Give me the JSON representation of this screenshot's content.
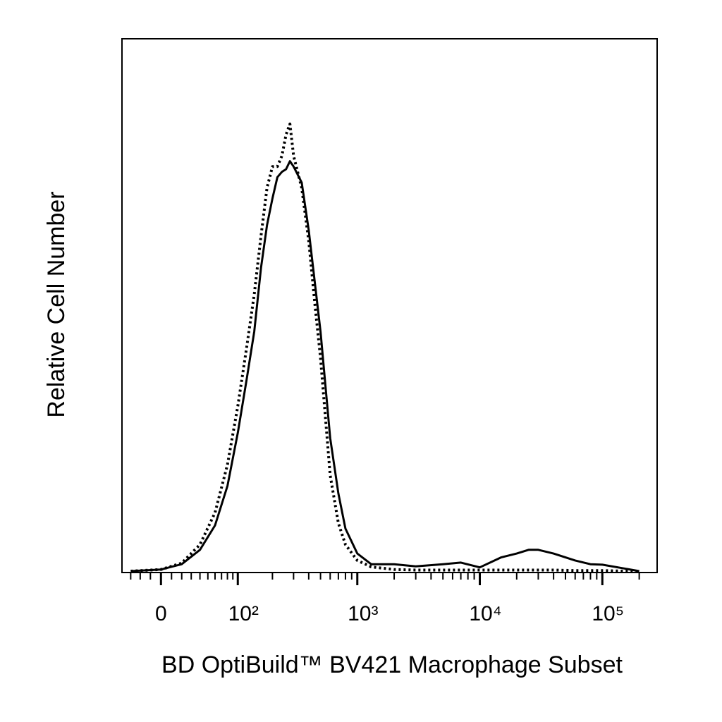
{
  "chart_data": {
    "type": "line",
    "xlabel": "BD OptiBuild™ BV421 Macrophage Subset",
    "ylabel": "Relative Cell Number",
    "xscale": "biexponential",
    "x": [
      -30,
      0,
      20,
      40,
      60,
      80,
      100,
      120,
      140,
      160,
      180,
      200,
      220,
      240,
      260,
      280,
      300,
      350,
      400,
      450,
      500,
      600,
      700,
      800,
      1000,
      1300,
      2000,
      3000,
      5000,
      7000,
      10000,
      15000,
      20000,
      25000,
      30000,
      40000,
      60000,
      80000,
      100000,
      150000,
      200000
    ],
    "series": [
      {
        "color": "#000000",
        "style": "solid",
        "values": [
          0,
          0.3,
          1.3,
          4,
          8.6,
          16,
          26,
          36,
          45,
          57,
          65,
          70,
          74,
          75,
          75.5,
          77,
          76,
          73,
          64,
          54,
          45,
          25,
          14.6,
          8,
          3.3,
          1.3,
          1.3,
          0.9,
          1.3,
          1.6,
          0.7,
          2.6,
          3.3,
          4,
          4,
          3.3,
          2,
          1.3,
          1.2,
          0.5,
          0
        ]
      },
      {
        "color": "#000000",
        "style": "dotted",
        "values": [
          0,
          0.3,
          1.5,
          5,
          11,
          20,
          31,
          42,
          52,
          63,
          72,
          76,
          76,
          78,
          82,
          84,
          78,
          72,
          62,
          50,
          40,
          18,
          9,
          5,
          2,
          0.8,
          0.3,
          0.2,
          0.2,
          0.2,
          0.2,
          0.2,
          0.2,
          0.2,
          0.2,
          0.2,
          0.1,
          0.1,
          0.1,
          0,
          0
        ]
      }
    ],
    "xlim": [
      -40,
      280000
    ],
    "ylim": [
      0,
      100
    ],
    "xticks": [
      0,
      {
        "value": 100,
        "label": "10²"
      },
      {
        "value": 1000,
        "label": "10³"
      },
      {
        "value": 10000,
        "label": "10⁴"
      },
      {
        "value": 100000,
        "label": "10⁵"
      }
    ],
    "xminorticks": [
      -30,
      -20,
      -10,
      10,
      20,
      30,
      40,
      50,
      60,
      70,
      80,
      90,
      200,
      300,
      400,
      500,
      600,
      700,
      800,
      900,
      2000,
      3000,
      4000,
      5000,
      6000,
      7000,
      8000,
      9000,
      20000,
      30000,
      40000,
      50000,
      60000,
      70000,
      80000,
      90000,
      200000
    ]
  }
}
